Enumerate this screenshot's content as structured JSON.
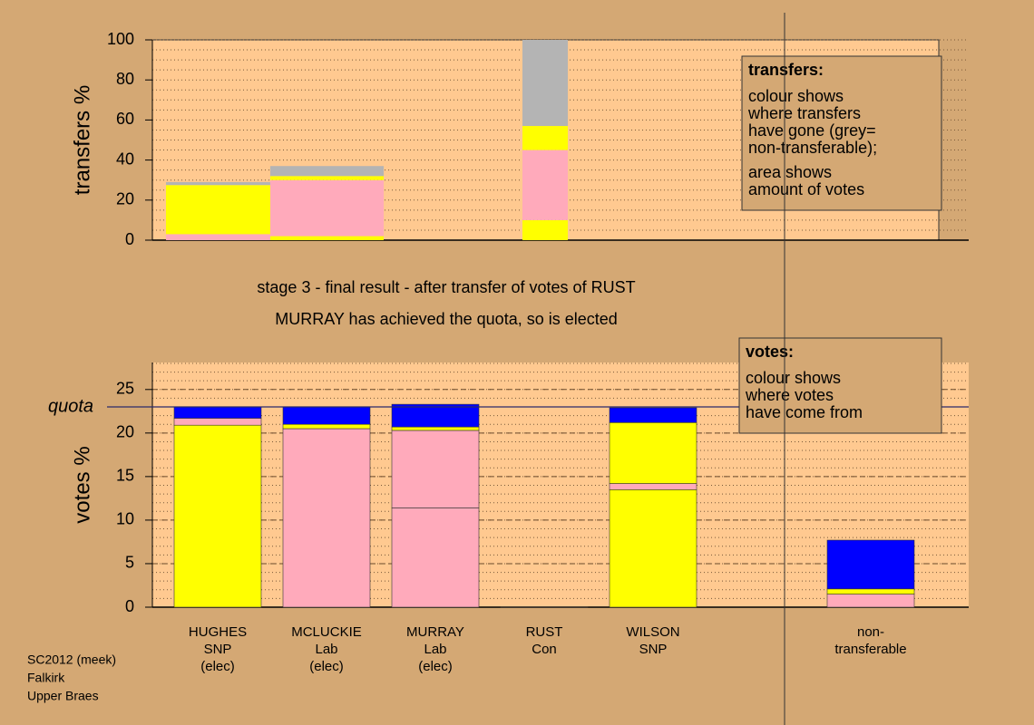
{
  "chart_data": [
    {
      "type": "variable-width-bar",
      "ylabel": "transfers %",
      "ylim": [
        0,
        100
      ],
      "yticks": [
        0,
        20,
        40,
        60,
        80,
        100
      ],
      "xlim": [
        -0.1,
        7.125
      ],
      "minor_grid_step": 5,
      "bars": [
        {
          "x": [
            0.025,
            0.983
          ],
          "segments": [
            {
              "color": "#ffaabb",
              "value": 3
            },
            {
              "color": "#ffff00",
              "value": 24.5
            },
            {
              "color": "#b4b4b4",
              "value": 1.5
            }
          ]
        },
        {
          "x": [
            0.983,
            2.025
          ],
          "segments": [
            {
              "color": "#ffff00",
              "value": 2
            },
            {
              "color": "#ffaabb",
              "value": 28
            },
            {
              "color": "#ffff00",
              "value": 2
            },
            {
              "color": "#b4b4b4",
              "value": 5
            }
          ]
        },
        {
          "x": [
            3.3,
            3.717
          ],
          "segments": [
            {
              "color": "#ffff00",
              "value": 10
            },
            {
              "color": "#ffaabb",
              "value": 35
            },
            {
              "color": "#ffff00",
              "value": 12
            },
            {
              "color": "#b4b4b4",
              "value": 43
            }
          ]
        }
      ],
      "legend": {
        "title": "transfers:",
        "lines": [
          "colour shows",
          "where transfers",
          "have gone (grey=",
          "non-transferable);",
          "area shows",
          "amount of votes"
        ]
      }
    },
    {
      "type": "stacked-bar",
      "title": [
        "stage 3 - final result - after transfer of votes of RUST",
        "MURRAY has achieved the quota, so is elected"
      ],
      "ylabel": "votes %",
      "ylim": [
        0,
        28.1
      ],
      "yticks": [
        0,
        5,
        10,
        15,
        20,
        25
      ],
      "xlim": [
        -0.1,
        7.4
      ],
      "minor_grid_step": 1,
      "quota": {
        "label": "quota",
        "value": 23
      },
      "categories": [
        [
          "HUGHES",
          "SNP",
          "(elec)"
        ],
        [
          "MCLUCKIE",
          "Lab",
          "(elec)"
        ],
        [
          "MURRAY",
          "Lab",
          "(elec)"
        ],
        [
          "RUST",
          "Con"
        ],
        [
          "WILSON",
          "SNP"
        ],
        null,
        [
          "non-",
          "transferable"
        ]
      ],
      "bars": [
        [
          {
            "color": "#ffff00",
            "value": 20.9
          },
          {
            "color": "#ffaabb",
            "value": 0.8
          },
          {
            "color": "#0000ff",
            "value": 1.3
          }
        ],
        [
          {
            "color": "#ffaabb",
            "value": 20.5
          },
          {
            "color": "#ffff00",
            "value": 0.5
          },
          {
            "color": "#0000ff",
            "value": 2.0
          }
        ],
        [
          {
            "color": "#ffaabb",
            "value": 11.4
          },
          {
            "color": "#ffaabb",
            "value": 8.9
          },
          {
            "color": "#ffff00",
            "value": 0.4
          },
          {
            "color": "#0000ff",
            "value": 2.6
          }
        ],
        [
          {
            "color": "#ffaabb",
            "value": 0
          }
        ],
        [
          {
            "color": "#ffff00",
            "value": 13.5
          },
          {
            "color": "#ffaabb",
            "value": 0.7
          },
          {
            "color": "#ffff00",
            "value": 7.0
          },
          {
            "color": "#0000ff",
            "value": 1.7
          }
        ],
        [],
        [
          {
            "color": "#ffaabb",
            "value": 1.5
          },
          {
            "color": "#ffff00",
            "value": 0.6
          },
          {
            "color": "#0000ff",
            "value": 5.6
          }
        ]
      ],
      "legend": {
        "title": "votes:",
        "lines": [
          "colour shows",
          "where votes",
          "have come from"
        ]
      }
    }
  ],
  "footer": [
    "SC2012 (meek)",
    "Falkirk",
    "Upper Braes"
  ]
}
